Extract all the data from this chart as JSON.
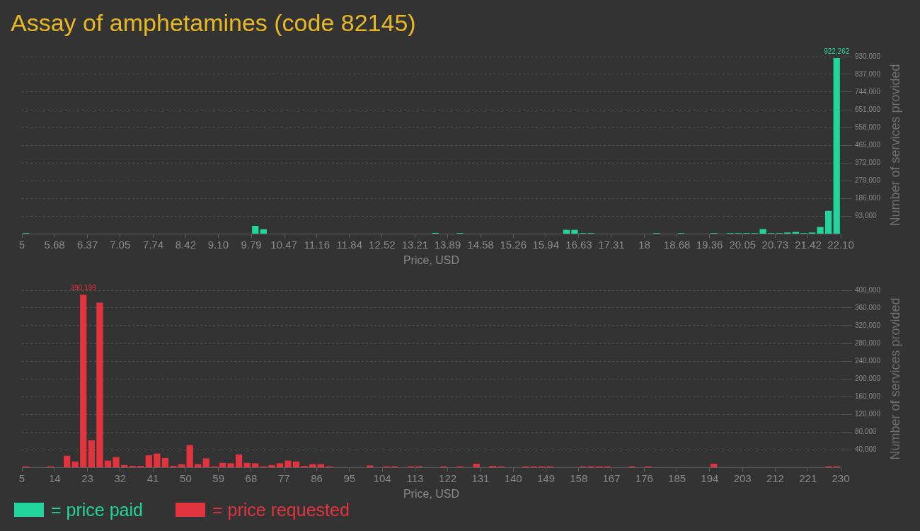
{
  "chart_data": [
    {
      "type": "histogram",
      "title": "Assay of amphetamines (code 82145)",
      "xlabel": "Price, USD",
      "ylabel": "Number of services provided",
      "bins": [
        5,
        5.171,
        5.342,
        5.513,
        5.684,
        5.855,
        6.026,
        6.197,
        6.368,
        6.539,
        6.71,
        6.881,
        7.052,
        7.223,
        7.394,
        7.565,
        7.736,
        7.907,
        8.078,
        8.249,
        8.42,
        8.591,
        8.762,
        8.933,
        9.104,
        9.275,
        9.446,
        9.617,
        9.788,
        9.959,
        10.13,
        10.301,
        10.472,
        10.643,
        10.814,
        10.985,
        11.156,
        11.327,
        11.498,
        11.669,
        11.84,
        12.011,
        12.182,
        12.353,
        12.524,
        12.695,
        12.866,
        13.037,
        13.208,
        13.379,
        13.55,
        13.721,
        13.892,
        14.063,
        14.234,
        14.405,
        14.576,
        14.747,
        14.918,
        15.089,
        15.26,
        15.431,
        15.602,
        15.773,
        15.944,
        16.115,
        16.286,
        16.457,
        16.628,
        16.799,
        16.97,
        17.141,
        17.312,
        17.483,
        17.654,
        17.825,
        17.996,
        18.167,
        18.338,
        18.509,
        18.68,
        18.851,
        19.022,
        19.193,
        19.364,
        19.535,
        19.706,
        19.877,
        20.048,
        20.219,
        20.39,
        20.561,
        20.732,
        20.903,
        21.074,
        21.245,
        21.416,
        21.587,
        21.758,
        21.929,
        22.1
      ],
      "series": [
        {
          "name": "= price paid",
          "color": "#21d59b",
          "values": [
            3000,
            0,
            0,
            0,
            0,
            0,
            0,
            0,
            0,
            0,
            0,
            0,
            0,
            0,
            0,
            0,
            0,
            0,
            0,
            0,
            0,
            0,
            0,
            0,
            0,
            0,
            0,
            0,
            41000,
            23000,
            0,
            0,
            0,
            0,
            0,
            0,
            0,
            0,
            0,
            0,
            0,
            0,
            0,
            0,
            0,
            0,
            0,
            0,
            0,
            0,
            4000,
            0,
            0,
            3000,
            0,
            0,
            0,
            0,
            0,
            0,
            0,
            0,
            0,
            0,
            0,
            0,
            20000,
            20000,
            3000,
            3000,
            0,
            0,
            0,
            0,
            0,
            0,
            0,
            3000,
            0,
            0,
            3000,
            0,
            0,
            0,
            3000,
            0,
            3000,
            3000,
            3000,
            3000,
            24000,
            3000,
            3000,
            6000,
            9000,
            3000,
            6000,
            35000,
            120000,
            922262
          ],
          "value_labels": [
            null,
            null,
            null,
            null,
            null,
            null,
            null,
            null,
            null,
            null,
            null,
            null,
            null,
            null,
            null,
            null,
            null,
            null,
            null,
            null,
            null,
            null,
            null,
            null,
            null,
            null,
            null,
            null,
            null,
            null,
            null,
            null,
            null,
            null,
            null,
            null,
            null,
            null,
            null,
            null,
            null,
            null,
            null,
            null,
            null,
            null,
            null,
            null,
            null,
            null,
            null,
            null,
            null,
            null,
            null,
            null,
            null,
            null,
            null,
            null,
            null,
            null,
            null,
            null,
            null,
            null,
            null,
            null,
            null,
            null,
            null,
            null,
            null,
            null,
            null,
            null,
            null,
            null,
            null,
            null,
            null,
            null,
            null,
            null,
            null,
            null,
            null,
            null,
            null,
            null,
            null,
            null,
            null,
            null,
            null,
            null,
            null,
            null,
            null,
            "922,262"
          ]
        }
      ],
      "xlim": [
        5,
        22.1
      ],
      "xticks": [
        5,
        5.68,
        6.37,
        7.05,
        7.74,
        8.42,
        {
          "value": 9.1,
          "label": "9.10"
        },
        9.79,
        10.47,
        11.16,
        11.84,
        12.52,
        13.21,
        13.89,
        14.58,
        15.26,
        15.94,
        16.63,
        17.31,
        18,
        18.68,
        19.36,
        20.05,
        20.73,
        21.42,
        {
          "value": 22.1,
          "label": "22.10"
        }
      ],
      "ylim": [
        0,
        930000
      ],
      "yticks": [
        {
          "value": 93000,
          "label": "93,000"
        },
        {
          "value": 186000,
          "label": "186,000"
        },
        {
          "value": 279000,
          "label": "279,000"
        },
        {
          "value": 372000,
          "label": "372,000"
        },
        {
          "value": 465000,
          "label": "465,000"
        },
        {
          "value": 558000,
          "label": "558,000"
        },
        {
          "value": 651000,
          "label": "651,000"
        },
        {
          "value": 744000,
          "label": "744,000"
        },
        {
          "value": 837000,
          "label": "837,000"
        },
        {
          "value": 930000,
          "label": "930,000"
        }
      ],
      "grid": "y",
      "legend": "bottom left"
    },
    {
      "type": "histogram",
      "xlabel": "Price, USD",
      "ylabel": "Number of services provided",
      "bins": [
        5,
        7.25,
        9.5,
        11.75,
        14,
        16.25,
        18.5,
        20.75,
        23,
        25.25,
        27.5,
        29.75,
        32,
        34.25,
        36.5,
        38.75,
        41,
        43.25,
        45.5,
        47.75,
        50,
        52.25,
        54.5,
        56.75,
        59,
        61.25,
        63.5,
        65.75,
        68,
        70.25,
        72.5,
        74.75,
        77,
        79.25,
        81.5,
        83.75,
        86,
        88.25,
        90.5,
        92.75,
        95,
        97.25,
        99.5,
        101.75,
        104,
        106.25,
        108.5,
        110.75,
        113,
        115.25,
        117.5,
        119.75,
        122,
        124.25,
        126.5,
        128.75,
        131,
        133.25,
        135.5,
        137.75,
        140,
        142.25,
        144.5,
        146.75,
        149,
        151.25,
        153.5,
        155.75,
        158,
        160.25,
        162.5,
        164.75,
        167,
        169.25,
        171.5,
        173.75,
        176,
        178.25,
        180.5,
        182.75,
        185,
        187.25,
        189.5,
        191.75,
        194,
        196.25,
        198.5,
        200.75,
        203,
        205.25,
        207.5,
        209.75,
        212,
        214.25,
        216.5,
        218.75,
        221,
        223.25,
        225.5,
        227.75,
        230
      ],
      "series": [
        {
          "name": "= price requested",
          "color": "#e2343f",
          "values": [
            2000,
            0,
            0,
            2000,
            0,
            26000,
            13000,
            390199,
            61000,
            372000,
            15000,
            23000,
            5000,
            3000,
            3000,
            27000,
            31000,
            21000,
            3000,
            7000,
            50000,
            7000,
            20000,
            2000,
            10000,
            9000,
            29000,
            10000,
            9000,
            2000,
            5000,
            9000,
            15000,
            13000,
            3000,
            7000,
            7000,
            2000,
            0,
            0,
            0,
            0,
            4000,
            0,
            2000,
            2000,
            0,
            2000,
            2000,
            0,
            0,
            2000,
            0,
            2000,
            0,
            8000,
            0,
            3000,
            2000,
            0,
            0,
            2000,
            2000,
            2000,
            2000,
            0,
            0,
            0,
            2000,
            2000,
            2000,
            2000,
            0,
            0,
            2000,
            0,
            2000,
            0,
            0,
            0,
            0,
            0,
            0,
            0,
            8000,
            0,
            0,
            0,
            0,
            0,
            0,
            0,
            0,
            0,
            0,
            0,
            0,
            0,
            2000,
            2000
          ],
          "value_labels": [
            null,
            null,
            null,
            null,
            null,
            null,
            null,
            "390,199",
            null,
            null,
            null,
            null,
            null,
            null,
            null,
            null,
            null,
            null,
            null,
            null,
            null,
            null,
            null,
            null,
            null,
            null,
            null,
            null,
            null,
            null,
            null,
            null,
            null,
            null,
            null,
            null,
            null,
            null,
            null,
            null,
            null,
            null,
            null,
            null,
            null,
            null,
            null,
            null,
            null,
            null,
            null,
            null,
            null,
            null,
            null,
            null,
            null,
            null,
            null,
            null,
            null,
            null,
            null,
            null,
            null,
            null,
            null,
            null,
            null,
            null,
            null,
            null,
            null,
            null,
            null,
            null,
            null,
            null,
            null,
            null,
            null,
            null,
            null,
            null,
            null,
            null,
            null,
            null,
            null,
            null,
            null,
            null,
            null,
            null,
            null,
            null,
            null,
            null,
            null,
            null
          ]
        }
      ],
      "xlim": [
        5,
        230
      ],
      "xticks": [
        5,
        14,
        23,
        32,
        41,
        50,
        59,
        68,
        77,
        86,
        95,
        104,
        113,
        122,
        131,
        140,
        149,
        158,
        167,
        176,
        185,
        194,
        203,
        212,
        221,
        230
      ],
      "ylim": [
        0,
        400000
      ],
      "yticks": [
        {
          "value": 40000,
          "label": "40,000"
        },
        {
          "value": 80000,
          "label": "80,000"
        },
        {
          "value": 120000,
          "label": "120,000"
        },
        {
          "value": 160000,
          "label": "160,000"
        },
        {
          "value": 200000,
          "label": "200,000"
        },
        {
          "value": 240000,
          "label": "240,000"
        },
        {
          "value": 280000,
          "label": "280,000"
        },
        {
          "value": 320000,
          "label": "320,000"
        },
        {
          "value": 360000,
          "label": "360,000"
        },
        {
          "value": 400000,
          "label": "400,000"
        }
      ],
      "grid": "y",
      "legend": "bottom left"
    }
  ]
}
